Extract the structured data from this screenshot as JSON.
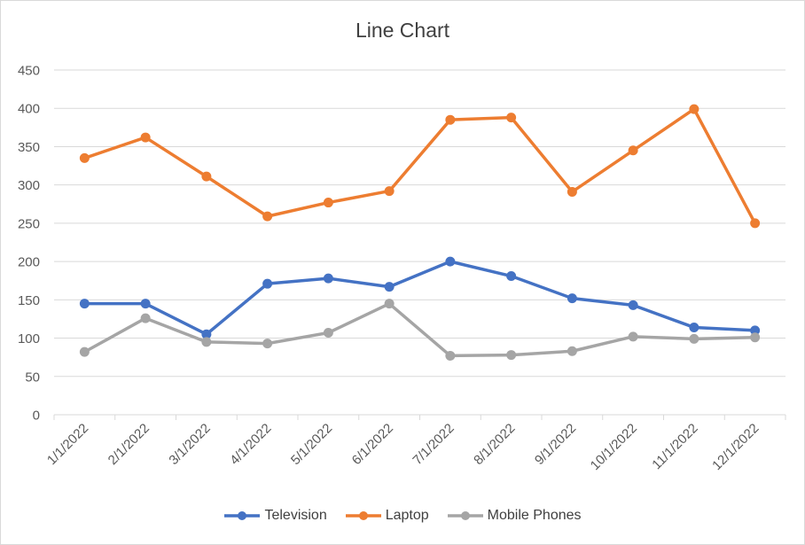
{
  "chart_data": {
    "type": "line",
    "title": "Line Chart",
    "xlabel": "",
    "ylabel": "",
    "categories": [
      "1/1/2022",
      "2/1/2022",
      "3/1/2022",
      "4/1/2022",
      "5/1/2022",
      "6/1/2022",
      "7/1/2022",
      "8/1/2022",
      "9/1/2022",
      "10/1/2022",
      "11/1/2022",
      "12/1/2022"
    ],
    "ylim": [
      0,
      450
    ],
    "yticks": [
      0,
      50,
      100,
      150,
      200,
      250,
      300,
      350,
      400,
      450
    ],
    "grid": true,
    "legend_position": "bottom",
    "series": [
      {
        "name": "Television",
        "color": "#4472C4",
        "values": [
          145,
          145,
          105,
          171,
          178,
          167,
          200,
          181,
          152,
          143,
          114,
          110
        ]
      },
      {
        "name": "Laptop",
        "color": "#ED7D31",
        "values": [
          335,
          362,
          311,
          259,
          277,
          292,
          385,
          388,
          291,
          345,
          399,
          250
        ]
      },
      {
        "name": "Mobile Phones",
        "color": "#A5A5A5",
        "values": [
          82,
          126,
          95,
          93,
          107,
          145,
          77,
          78,
          83,
          102,
          99,
          101
        ]
      }
    ]
  }
}
